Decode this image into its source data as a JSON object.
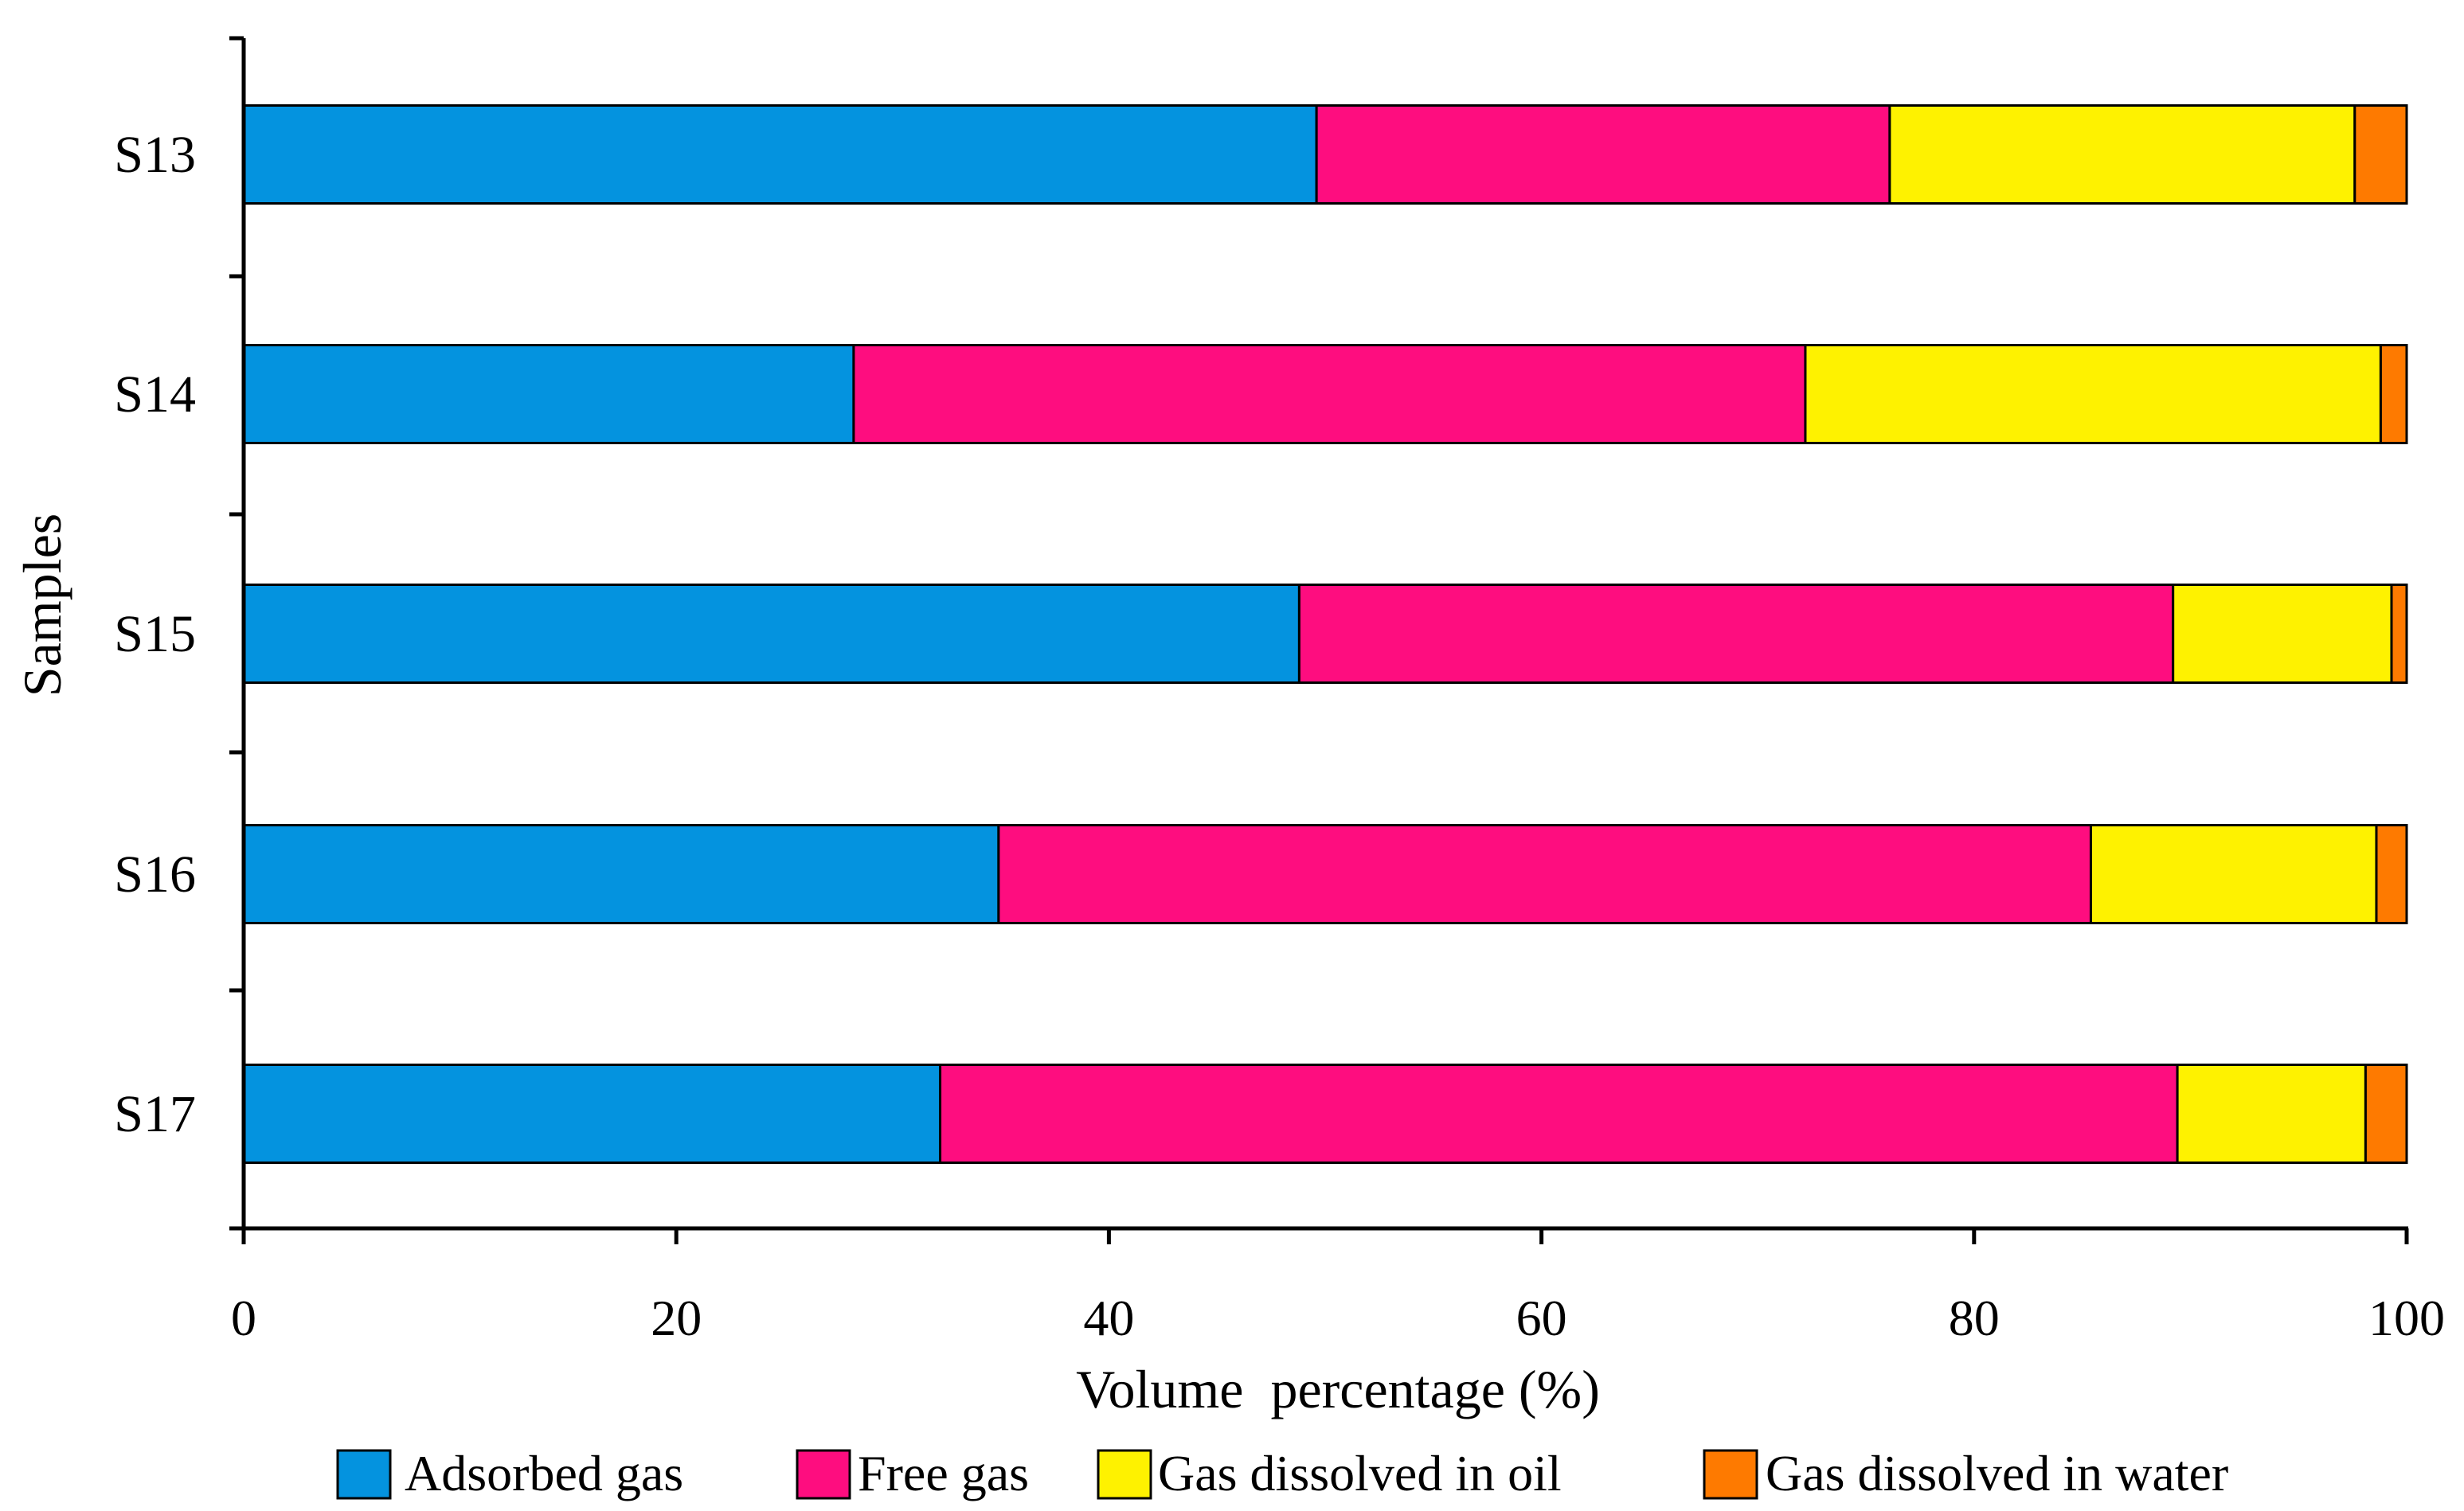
{
  "chart_data": {
    "type": "bar",
    "orientation": "horizontal",
    "stacked": true,
    "title": "",
    "xlabel": "Volume  percentage (%)",
    "ylabel": "Samples",
    "xlim": [
      0,
      100
    ],
    "xticks": [
      0,
      20,
      40,
      60,
      80,
      100
    ],
    "categories": [
      "S13",
      "S14",
      "S15",
      "S16",
      "S17"
    ],
    "series": [
      {
        "name": "Adsorbed gas",
        "color": "#0493df",
        "values": [
          49.6,
          28.2,
          48.8,
          34.9,
          32.2
        ]
      },
      {
        "name": "Free gas",
        "color": "#fe0d7f",
        "values": [
          26.5,
          44.0,
          40.4,
          50.5,
          57.2
        ]
      },
      {
        "name": "Gas dissolved in oil",
        "color": "#fef200",
        "values": [
          21.5,
          26.6,
          10.1,
          13.2,
          8.7
        ]
      },
      {
        "name": "Gas dissolved in water",
        "color": "#fe7a00",
        "values": [
          2.4,
          1.2,
          0.7,
          1.4,
          1.9
        ]
      }
    ],
    "legend_position": "bottom",
    "grid": false
  }
}
